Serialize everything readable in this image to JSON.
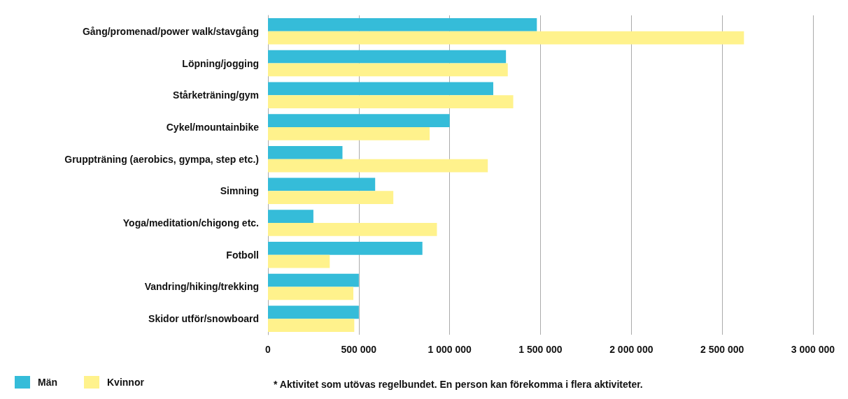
{
  "chart_data": {
    "type": "bar",
    "orientation": "horizontal",
    "categories": [
      "Gång/promenad/power walk/stavgång",
      "Löpning/jogging",
      "Stårketräning/gym",
      "Cykel/mountainbike",
      "Gruppträning (aerobics, gympa, step etc.)",
      "Simning",
      "Yoga/meditation/chigong etc.",
      "Fotboll",
      "Vandring/hiking/trekking",
      "Skidor utför/snowboard"
    ],
    "series": [
      {
        "name": "Män",
        "color": "#35bcd9",
        "values": [
          1480000,
          1310000,
          1240000,
          1000000,
          410000,
          590000,
          250000,
          850000,
          500000,
          500000
        ]
      },
      {
        "name": "Kvinnor",
        "color": "#fff28c",
        "values": [
          2620000,
          1320000,
          1350000,
          890000,
          1210000,
          690000,
          930000,
          340000,
          470000,
          475000
        ]
      }
    ],
    "xlim": [
      0,
      3000000
    ],
    "xticks": [
      0,
      {
        "value": 500000,
        "label": "500 000"
      },
      {
        "value": 1000000,
        "label": "1 000 000"
      },
      {
        "value": 1500000,
        "label": "1 500 000"
      },
      {
        "value": 2000000,
        "label": "2 000 000"
      },
      {
        "value": 2500000,
        "label": "2 500 000"
      },
      {
        "value": 3000000,
        "label": "3 000 000"
      }
    ],
    "grid": "x",
    "legend": "bottom left",
    "annotations": [
      "* Aktivitet som utövas regelbundet. En person kan förekomma i flera aktiviteter."
    ]
  }
}
